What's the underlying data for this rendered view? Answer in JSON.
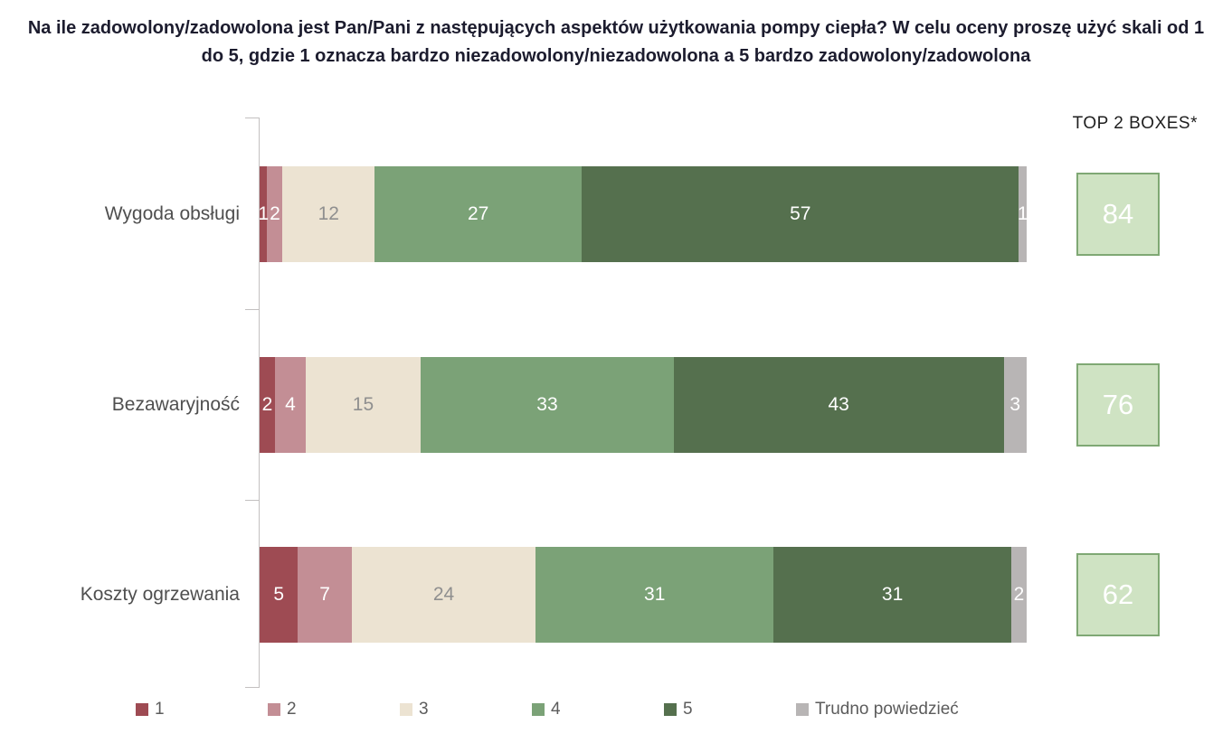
{
  "chart_data": {
    "type": "bar",
    "stacked": true,
    "orientation": "horizontal",
    "title": "Na ile zadowolony/zadowolona jest Pan/Pani z następujących aspektów użytkowania pompy ciepła? W celu oceny proszę użyć skali od 1 do 5, gdzie 1 oznacza bardzo niezadowolony/niezadowolona a 5 bardzo zadowolony/zadowolona",
    "categories": [
      "Wygoda obsługi",
      "Bezawaryjność",
      "Koszty ogrzewania"
    ],
    "series": [
      {
        "name": "1",
        "color": "#9e4b53",
        "label_color": "#ffffff",
        "values": [
          1,
          2,
          5
        ]
      },
      {
        "name": "2",
        "color": "#c38e95",
        "label_color": "#ffffff",
        "values": [
          2,
          4,
          7
        ]
      },
      {
        "name": "3",
        "color": "#ece3d2",
        "label_color": "#8f8f8f",
        "values": [
          12,
          15,
          24
        ]
      },
      {
        "name": "4",
        "color": "#7ba277",
        "label_color": "#ffffff",
        "values": [
          27,
          33,
          31
        ]
      },
      {
        "name": "5",
        "color": "#55704e",
        "label_color": "#ffffff",
        "values": [
          57,
          43,
          31
        ]
      },
      {
        "name": "Trudno powiedzieć",
        "color": "#b8b5b5",
        "label_color": "#ffffff",
        "values": [
          1,
          3,
          2
        ]
      }
    ],
    "top2_label": "TOP 2 BOXES*",
    "top2_values": [
      84,
      76,
      62
    ],
    "top2_box_fill": "#cfe3c3",
    "top2_box_border": "#7fa874",
    "xlim": [
      0,
      100
    ],
    "grid": false,
    "legend_position": "bottom"
  }
}
